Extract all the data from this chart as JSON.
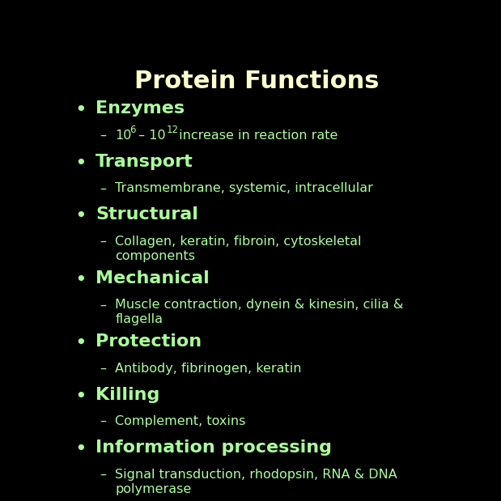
{
  "title": "Protein Functions",
  "background_color": "#000000",
  "title_color": "#ffffcc",
  "bullet_color": "#aaff99",
  "sub_color": "#aaff99",
  "title_fontsize": 22,
  "bullet_fontsize": 16,
  "sub_fontsize": 11.5,
  "items": [
    {
      "bullet": "Enzymes",
      "sub_superscript": true
    },
    {
      "bullet": "Transport",
      "sub": "Transmembrane, systemic, intracellular",
      "multiline": false
    },
    {
      "bullet": "Structural",
      "sub": "Collagen, keratin, fibroin, cytoskeletal\ncomponents",
      "multiline": true
    },
    {
      "bullet": "Mechanical",
      "sub": "Muscle contraction, dynein & kinesin, cilia &\nflagella",
      "multiline": true
    },
    {
      "bullet": "Protection",
      "sub": "Antibody, fibrinogen, keratin",
      "multiline": false
    },
    {
      "bullet": "Killing",
      "sub": "Complement, toxins",
      "multiline": false
    },
    {
      "bullet": "Information processing",
      "sub": "Signal transduction, rhodopsin, RNA & DNA\npolymerase",
      "multiline": true
    }
  ]
}
